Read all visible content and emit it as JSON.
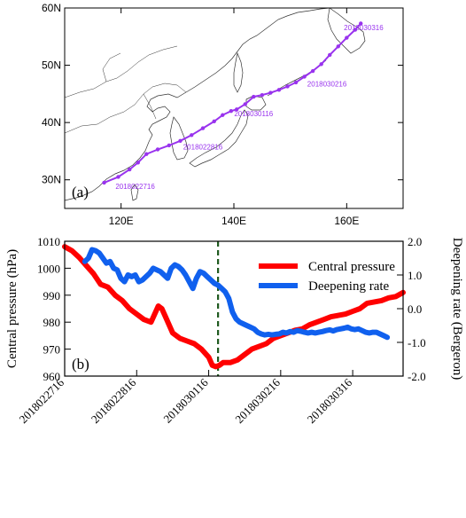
{
  "chart_data": [
    {
      "type": "map",
      "panel_label": "(a)",
      "x_ticks": [
        "120E",
        "140E",
        "160E"
      ],
      "x_tick_values": [
        120,
        140,
        160
      ],
      "y_ticks": [
        "30N",
        "40N",
        "50N",
        "60N"
      ],
      "y_tick_values": [
        30,
        40,
        50,
        60
      ],
      "xlim": [
        110,
        170
      ],
      "ylim": [
        25,
        60
      ],
      "track_color": "#9933ee",
      "track": {
        "lon": [
          117.0,
          119.5,
          121.5,
          123.0,
          124.5,
          126.5,
          128.5,
          130.5,
          132.5,
          134.5,
          136.5,
          138.0,
          139.5,
          140.5,
          142.0,
          143.5,
          145.0,
          146.5,
          148.0,
          149.5,
          151.0,
          152.5,
          154.0,
          155.5,
          157.0,
          158.5,
          160.0,
          161.5,
          162.5
        ],
        "lat": [
          29.5,
          30.5,
          31.8,
          33.0,
          34.5,
          35.3,
          36.0,
          36.8,
          37.8,
          39.0,
          40.2,
          41.3,
          42.0,
          42.3,
          43.2,
          44.5,
          44.8,
          45.2,
          45.7,
          46.3,
          47.0,
          48.0,
          49.0,
          50.2,
          51.8,
          53.3,
          54.8,
          56.2,
          57.3
        ]
      },
      "annotations": [
        {
          "text": "2018022716",
          "lon": 122.5,
          "lat": 28.4
        },
        {
          "text": "2018022816",
          "lon": 134.5,
          "lat": 35.3
        },
        {
          "text": "2018030116",
          "lon": 143.5,
          "lat": 41.1
        },
        {
          "text": "2018030216",
          "lon": 156.5,
          "lat": 46.3
        },
        {
          "text": "2018030316",
          "lon": 163.0,
          "lat": 56.1
        }
      ]
    },
    {
      "type": "line",
      "panel_label": "(b)",
      "categories": [
        "2018022716",
        "2018022816",
        "2018030116",
        "2018030216",
        "2018030316"
      ],
      "category_values": [
        0,
        1,
        2,
        3,
        4
      ],
      "xlim": [
        0,
        4.7
      ],
      "ylabel": "Central pressure (hPa)",
      "ylim": [
        960,
        1010
      ],
      "yticks": [
        960,
        970,
        980,
        990,
        1000,
        1010
      ],
      "y2label": "Deepening rate (Bergeron)",
      "y2lim": [
        -2.0,
        2.0
      ],
      "y2ticks": [
        "-2.0",
        "-1.0",
        "0.0",
        "1.0",
        "2.0"
      ],
      "y2tick_values": [
        -2.0,
        -1.0,
        0.0,
        1.0,
        2.0
      ],
      "vline": {
        "x": 2.13,
        "color": "#1f5a1f"
      },
      "legend_position": "top-right",
      "series": [
        {
          "name": "Central pressure",
          "axis": "left",
          "color": "#ff0000",
          "x": [
            0.0,
            0.1,
            0.2,
            0.3,
            0.4,
            0.5,
            0.6,
            0.7,
            0.8,
            0.9,
            1.0,
            1.1,
            1.2,
            1.3,
            1.35,
            1.4,
            1.5,
            1.6,
            1.7,
            1.8,
            1.9,
            2.0,
            2.05,
            2.1,
            2.15,
            2.2,
            2.3,
            2.4,
            2.5,
            2.6,
            2.7,
            2.8,
            2.9,
            3.0,
            3.1,
            3.2,
            3.3,
            3.4,
            3.5,
            3.6,
            3.7,
            3.8,
            3.9,
            4.0,
            4.1,
            4.2,
            4.3,
            4.4,
            4.5,
            4.6,
            4.7
          ],
          "values": [
            1008,
            1006.5,
            1004,
            1001,
            998,
            994,
            993,
            990,
            988,
            985,
            983,
            981,
            980,
            986,
            985,
            982,
            976,
            974,
            973,
            972,
            970,
            967,
            964,
            963.5,
            964,
            965,
            965,
            966,
            968,
            970,
            971,
            972,
            974,
            975,
            976,
            977,
            977.5,
            979,
            980,
            981,
            982,
            982.5,
            983,
            984,
            985,
            987,
            987.5,
            988,
            989,
            989.5,
            991
          ]
        },
        {
          "name": "Deepening rate",
          "axis": "right",
          "color": "#1060ee",
          "x": [
            0.28,
            0.33,
            0.38,
            0.43,
            0.48,
            0.53,
            0.58,
            0.63,
            0.68,
            0.73,
            0.78,
            0.83,
            0.88,
            0.93,
            0.98,
            1.03,
            1.08,
            1.13,
            1.18,
            1.23,
            1.28,
            1.33,
            1.38,
            1.43,
            1.48,
            1.53,
            1.58,
            1.63,
            1.68,
            1.73,
            1.78,
            1.83,
            1.88,
            1.93,
            1.98,
            2.03,
            2.08,
            2.13,
            2.18,
            2.23,
            2.28,
            2.33,
            2.38,
            2.43,
            2.48,
            2.53,
            2.58,
            2.63,
            2.68,
            2.73,
            2.78,
            2.83,
            2.88,
            2.93,
            2.98,
            3.03,
            3.08,
            3.13,
            3.18,
            3.23,
            3.28,
            3.33,
            3.38,
            3.43,
            3.48,
            3.53,
            3.58,
            3.63,
            3.68,
            3.73,
            3.78,
            3.83,
            3.88,
            3.93,
            3.98,
            4.03,
            4.08,
            4.13,
            4.18,
            4.23,
            4.28,
            4.33,
            4.38,
            4.43,
            4.48
          ],
          "values": [
            1.4,
            1.5,
            1.75,
            1.72,
            1.65,
            1.5,
            1.35,
            1.4,
            1.2,
            1.15,
            0.9,
            0.8,
            1.0,
            0.95,
            1.0,
            0.8,
            0.85,
            0.95,
            1.05,
            1.2,
            1.15,
            1.1,
            1.0,
            0.9,
            1.2,
            1.3,
            1.25,
            1.15,
            1.0,
            0.8,
            0.6,
            0.9,
            1.1,
            1.05,
            0.95,
            0.85,
            0.75,
            0.7,
            0.6,
            0.5,
            0.3,
            -0.1,
            -0.3,
            -0.4,
            -0.45,
            -0.5,
            -0.55,
            -0.6,
            -0.7,
            -0.75,
            -0.78,
            -0.76,
            -0.78,
            -0.76,
            -0.75,
            -0.7,
            -0.72,
            -0.68,
            -0.7,
            -0.65,
            -0.67,
            -0.7,
            -0.72,
            -0.7,
            -0.72,
            -0.7,
            -0.68,
            -0.65,
            -0.63,
            -0.66,
            -0.62,
            -0.6,
            -0.58,
            -0.55,
            -0.6,
            -0.62,
            -0.6,
            -0.65,
            -0.7,
            -0.72,
            -0.7,
            -0.7,
            -0.75,
            -0.8,
            -0.85
          ]
        }
      ]
    }
  ]
}
